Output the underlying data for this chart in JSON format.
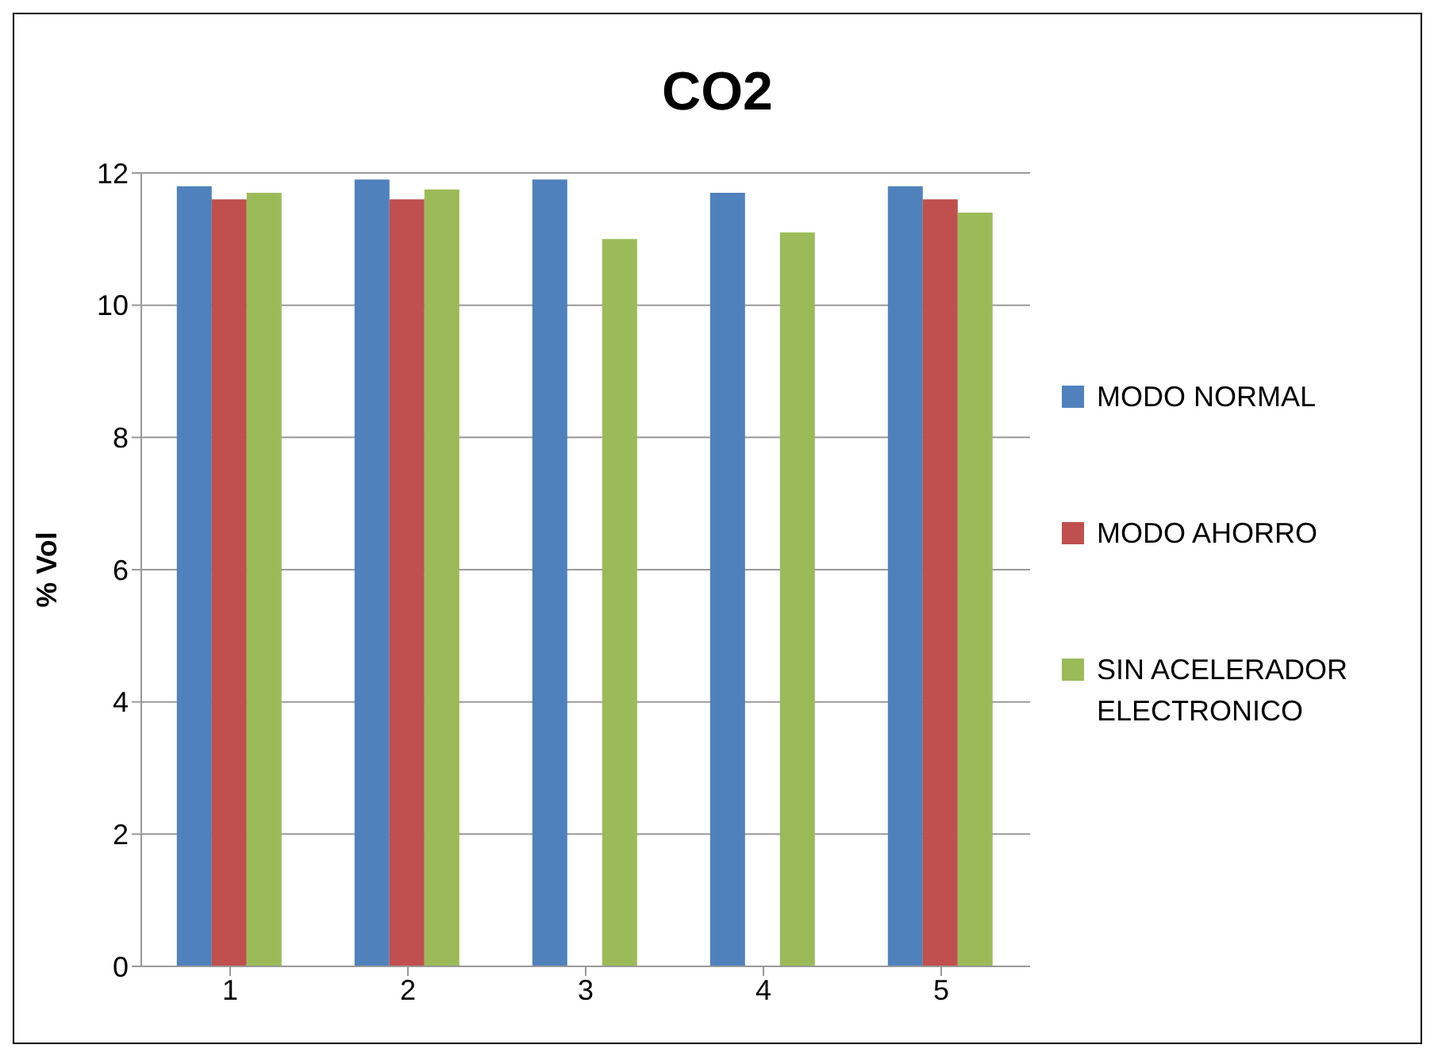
{
  "chart_data": {
    "type": "bar",
    "title": "CO2",
    "ylabel": "% Vol",
    "categories": [
      "1",
      "2",
      "3",
      "4",
      "5"
    ],
    "series": [
      {
        "name": "MODO NORMAL",
        "color": "#4f81bd",
        "values": [
          11.8,
          11.9,
          11.9,
          11.7,
          11.8
        ]
      },
      {
        "name": "MODO AHORRO",
        "color": "#c0504d",
        "values": [
          11.6,
          11.6,
          0,
          0,
          11.6
        ]
      },
      {
        "name": "SIN ACELERADOR ELECTRONICO",
        "color": "#9bbb59",
        "values": [
          11.7,
          11.75,
          11.0,
          11.1,
          11.4
        ]
      }
    ],
    "ylim": [
      0,
      12
    ],
    "yticks": [
      0,
      2,
      4,
      6,
      8,
      10,
      12
    ],
    "grid": "y",
    "legend": "right"
  }
}
